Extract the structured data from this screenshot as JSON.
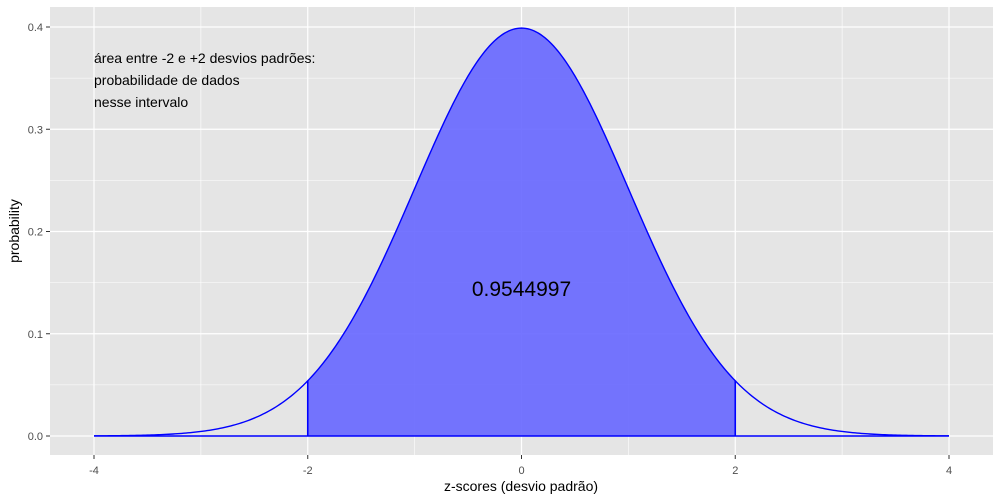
{
  "chart_data": {
    "type": "area",
    "title": "",
    "xlabel": "z-scores (desvio padrão)",
    "ylabel": "probability",
    "xlim": [
      -4,
      4
    ],
    "ylim": [
      0,
      0.4
    ],
    "x_ticks": [
      -4,
      -2,
      0,
      2,
      4
    ],
    "x_tick_labels": [
      "-4",
      "-2",
      "0",
      "2",
      "4"
    ],
    "y_ticks": [
      0.0,
      0.1,
      0.2,
      0.3,
      0.4
    ],
    "y_tick_labels": [
      "0.0",
      "0.1",
      "0.2",
      "0.3",
      "0.4"
    ],
    "grid": true,
    "series": [
      {
        "distribution": "normal",
        "mean": 0,
        "sd": 1,
        "x_range": [
          -4,
          4
        ],
        "shaded_interval": [
          -2,
          2
        ]
      }
    ],
    "annotations": {
      "note_lines": [
        "área entre -2 e +2 desvios padrões:",
        "probabilidade de dados",
        "nesse intervalo"
      ],
      "area_value": "0.9544997"
    },
    "colors": {
      "panel_background": "#e5e5e5",
      "grid": "#ffffff",
      "line": "#0000ff",
      "fill": "#6666ff"
    }
  }
}
